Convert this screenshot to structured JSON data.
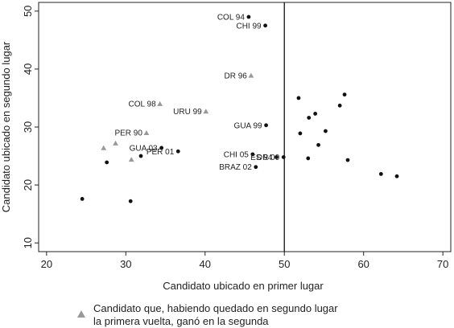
{
  "chart_data": {
    "type": "scatter",
    "title": "",
    "xlabel": "Candidato ubicado en primer lugar",
    "ylabel": "Candidato ubicado en segundo lugar",
    "xlim": [
      19,
      71
    ],
    "ylim": [
      8.5,
      51.5
    ],
    "xticks": [
      20,
      30,
      40,
      50,
      60,
      70
    ],
    "yticks": [
      10,
      20,
      30,
      40,
      50
    ],
    "vline": 50,
    "grid": false,
    "legend": {
      "position": "bottom-left",
      "marker": "triangle",
      "text_lines": [
        "Candidato que, habiendo quedado en segundo lugar",
        "la primera vuelta, ganó en la segunda"
      ]
    },
    "series": [
      {
        "marker": "circle",
        "color": "#111111",
        "points": [
          {
            "x": 24.5,
            "y": 17.6
          },
          {
            "x": 27.6,
            "y": 23.9
          },
          {
            "x": 30.6,
            "y": 17.2
          },
          {
            "x": 31.9,
            "y": 25.0
          },
          {
            "x": 34.5,
            "y": 26.4,
            "label": "GUA 03"
          },
          {
            "x": 36.6,
            "y": 25.8,
            "label": "PER 01"
          },
          {
            "x": 45.5,
            "y": 49.0,
            "label": "COL 94"
          },
          {
            "x": 46.0,
            "y": 25.3,
            "label": "CHI 05"
          },
          {
            "x": 46.4,
            "y": 23.1,
            "label": "BRAZ 02"
          },
          {
            "x": 47.6,
            "y": 47.5,
            "label": "CHI 99"
          },
          {
            "x": 47.7,
            "y": 30.3,
            "label": "GUA 99"
          },
          {
            "x": 49.0,
            "y": 24.8,
            "label": "ES 94"
          },
          {
            "x": 49.9,
            "y": 24.8,
            "label": "DR 00"
          },
          {
            "x": 51.8,
            "y": 35.0
          },
          {
            "x": 52.0,
            "y": 28.9
          },
          {
            "x": 53.0,
            "y": 24.6
          },
          {
            "x": 53.1,
            "y": 31.6
          },
          {
            "x": 53.9,
            "y": 32.3
          },
          {
            "x": 54.3,
            "y": 26.9
          },
          {
            "x": 55.2,
            "y": 29.3
          },
          {
            "x": 57.0,
            "y": 33.7
          },
          {
            "x": 57.6,
            "y": 35.6
          },
          {
            "x": 58.0,
            "y": 24.3
          },
          {
            "x": 62.2,
            "y": 21.9
          },
          {
            "x": 64.2,
            "y": 21.5
          }
        ]
      },
      {
        "marker": "triangle",
        "color": "#999999",
        "points": [
          {
            "x": 27.2,
            "y": 26.4
          },
          {
            "x": 28.7,
            "y": 27.2
          },
          {
            "x": 30.7,
            "y": 24.4
          },
          {
            "x": 32.6,
            "y": 29.0,
            "label": "PER 90"
          },
          {
            "x": 34.3,
            "y": 34.0,
            "label": "COL 98"
          },
          {
            "x": 40.1,
            "y": 32.7,
            "label": "URU 99"
          },
          {
            "x": 45.8,
            "y": 38.9,
            "label": "DR 96"
          }
        ]
      }
    ]
  }
}
